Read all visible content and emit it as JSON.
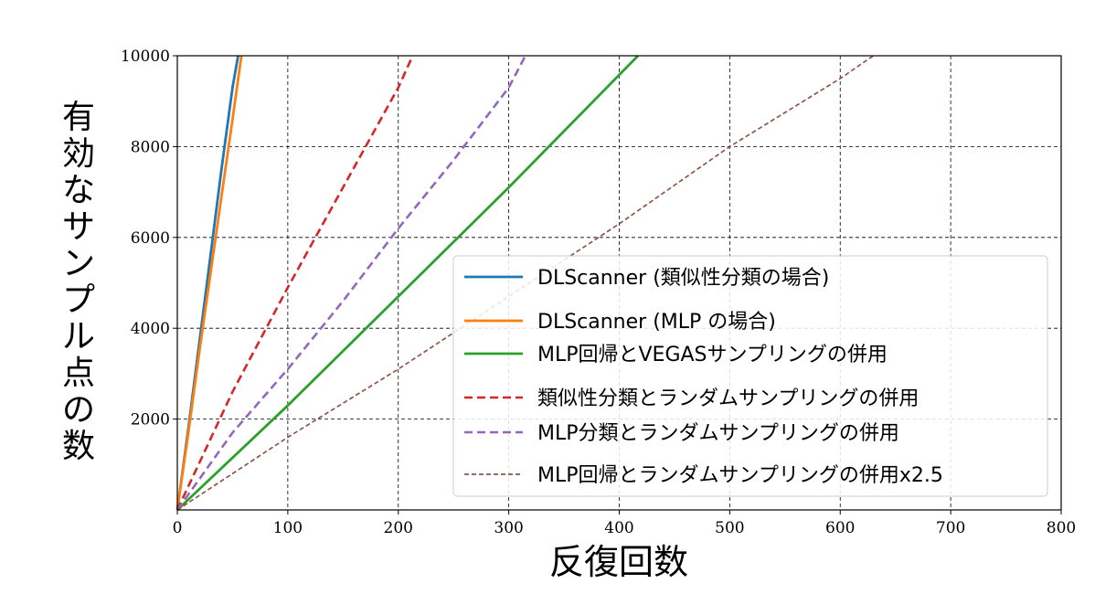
{
  "chart_data": {
    "type": "line",
    "title": "",
    "xlabel": "反復回数",
    "ylabel": "有効なサンプル点の数",
    "xlim": [
      0,
      800
    ],
    "ylim": [
      0,
      10000
    ],
    "xticks": [
      "0",
      "100",
      "200",
      "300",
      "400",
      "500",
      "600",
      "700",
      "800"
    ],
    "yticks": [
      "2000",
      "4000",
      "6000",
      "8000",
      "10000"
    ],
    "grid": true,
    "legend_position": "lower-right",
    "series": [
      {
        "name": "DLScanner (類似性分類の場合)",
        "color": "#1f77b4",
        "style": "solid",
        "x": [
          0,
          10,
          20,
          30,
          40,
          50,
          55
        ],
        "y": [
          0,
          1800,
          3700,
          5600,
          7500,
          9300,
          10000
        ]
      },
      {
        "name": "DLScanner (MLP の場合)",
        "color": "#ff7f0e",
        "style": "solid",
        "x": [
          0,
          10,
          20,
          30,
          40,
          50,
          58
        ],
        "y": [
          0,
          1700,
          3500,
          5200,
          6900,
          8600,
          10000
        ]
      },
      {
        "name": "MLP回帰とVEGASサンプリングの併用",
        "color": "#2ca02c",
        "style": "solid",
        "x": [
          0,
          100,
          200,
          300,
          417
        ],
        "y": [
          0,
          2300,
          4700,
          7100,
          10000
        ]
      },
      {
        "name": "類似性分類とランダムサンプリングの併用",
        "color": "#d62728",
        "style": "dashed",
        "x": [
          0,
          50,
          100,
          150,
          200,
          213
        ],
        "y": [
          0,
          2600,
          4900,
          7100,
          9300,
          10000
        ]
      },
      {
        "name": "MLP分類とランダムサンプリングの併用",
        "color": "#9467bd",
        "style": "dashed",
        "x": [
          0,
          50,
          100,
          150,
          200,
          250,
          300,
          315
        ],
        "y": [
          0,
          1700,
          3100,
          4600,
          6200,
          7700,
          9300,
          10000
        ]
      },
      {
        "name": "MLP回帰とランダムサンプリングの併用x2.5",
        "color": "#8c564b",
        "style": "dotted",
        "x": [
          0,
          100,
          200,
          300,
          400,
          500,
          600,
          630
        ],
        "y": [
          0,
          1600,
          3100,
          4700,
          6300,
          8000,
          9500,
          10000
        ]
      }
    ]
  }
}
